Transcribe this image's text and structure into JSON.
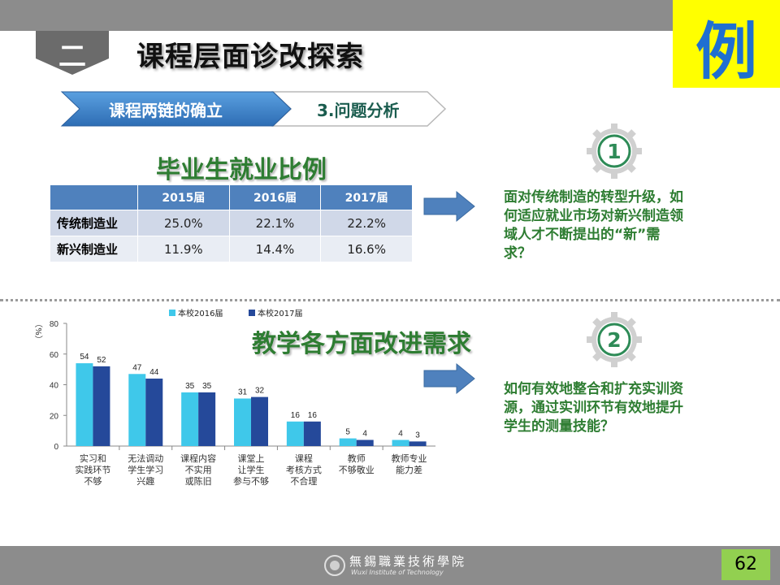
{
  "header": {
    "section_number": "二",
    "title": "课程层面诊改探索",
    "example_char": "例"
  },
  "breadcrumb": {
    "step1": "课程两链的确立",
    "step2": "3.问题分析"
  },
  "employment": {
    "title": "毕业生就业比例",
    "columns": [
      "",
      "2015届",
      "2016届",
      "2017届"
    ],
    "rows": [
      {
        "label": "传统制造业",
        "values": [
          "25.0%",
          "22.1%",
          "22.2%"
        ]
      },
      {
        "label": "新兴制造业",
        "values": [
          "11.9%",
          "14.4%",
          "16.6%"
        ]
      }
    ]
  },
  "issues": [
    {
      "number": "1",
      "text_lines": [
        "面对传统制造的转型升级，如",
        "何适应就业市场对新兴制造领",
        "域人才不断提出的“新”需",
        "求？"
      ]
    },
    {
      "number": "2",
      "text_lines": [
        "如何有效地整合和扩充实训资",
        "源，通过实训环节有效地提升",
        "学生的测量技能？"
      ]
    }
  ],
  "teaching_section_title": "教学各方面改进需求",
  "chart_data": {
    "type": "bar",
    "ylabel": "（%）",
    "ylim": [
      0,
      80
    ],
    "yticks": [
      0,
      20,
      40,
      60,
      80
    ],
    "legend_position": "top",
    "categories": [
      [
        "实习和",
        "实践环节",
        "不够"
      ],
      [
        "无法调动",
        "学生学习",
        "兴趣"
      ],
      [
        "课程内容",
        "不实用",
        "或陈旧"
      ],
      [
        "课堂上",
        "让学生",
        "参与不够"
      ],
      [
        "课程",
        "考核方式",
        "不合理"
      ],
      [
        "教师",
        "不够敬业"
      ],
      [
        "教师专业",
        "能力差"
      ]
    ],
    "series": [
      {
        "name": "本校2016届",
        "color": "#3fc8ea",
        "values": [
          54,
          47,
          35,
          31,
          16,
          5,
          4
        ]
      },
      {
        "name": "本校2017届",
        "color": "#25499a",
        "values": [
          52,
          44,
          35,
          32,
          16,
          4,
          3
        ]
      }
    ]
  },
  "footer": {
    "school_cn": "無錫職業技術學院",
    "school_en": "Wuxi Institute of Technology",
    "page_number": "62"
  }
}
